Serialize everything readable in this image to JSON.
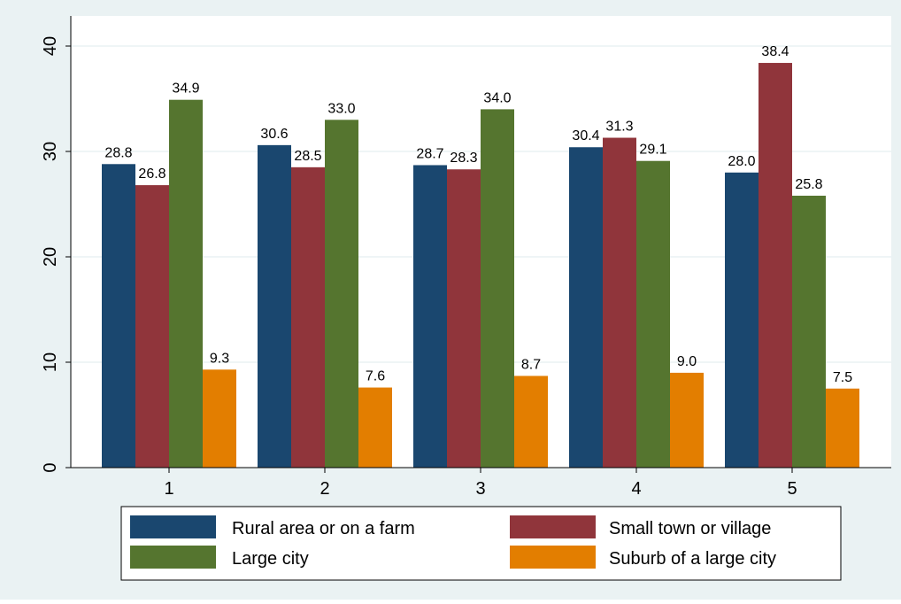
{
  "chart_data": {
    "type": "bar",
    "categories": [
      "1",
      "2",
      "3",
      "4",
      "5"
    ],
    "series": [
      {
        "name": "Rural area or on a farm",
        "color": "#1a476f",
        "values": [
          28.8,
          30.6,
          28.7,
          30.4,
          28.0
        ],
        "labels": [
          "28.8",
          "30.6",
          "28.7",
          "30.4",
          "28.0"
        ]
      },
      {
        "name": "Small town or village",
        "color": "#90353b",
        "values": [
          26.8,
          28.5,
          28.3,
          31.3,
          38.4
        ],
        "labels": [
          "26.8",
          "28.5",
          "28.3",
          "31.3",
          "38.4"
        ]
      },
      {
        "name": "Large city",
        "color": "#55752f",
        "values": [
          34.9,
          33.0,
          34.0,
          29.1,
          25.8
        ],
        "labels": [
          "34.9",
          "33.0",
          "34.0",
          "29.1",
          "25.8"
        ]
      },
      {
        "name": "Suburb of a large city",
        "color": "#e37e00",
        "values": [
          9.3,
          7.6,
          8.7,
          9.0,
          7.5
        ],
        "labels": [
          "9.3",
          "7.6",
          "8.7",
          "9.0",
          "7.5"
        ]
      }
    ],
    "y_ticks": [
      "0",
      "10",
      "20",
      "30",
      "40"
    ],
    "ylim": [
      0,
      40
    ],
    "grid": true,
    "legend_position": "bottom",
    "colors": {
      "background": "#eaf2f3",
      "plot_background": "#ffffff",
      "grid": "#eaf2f3"
    }
  }
}
